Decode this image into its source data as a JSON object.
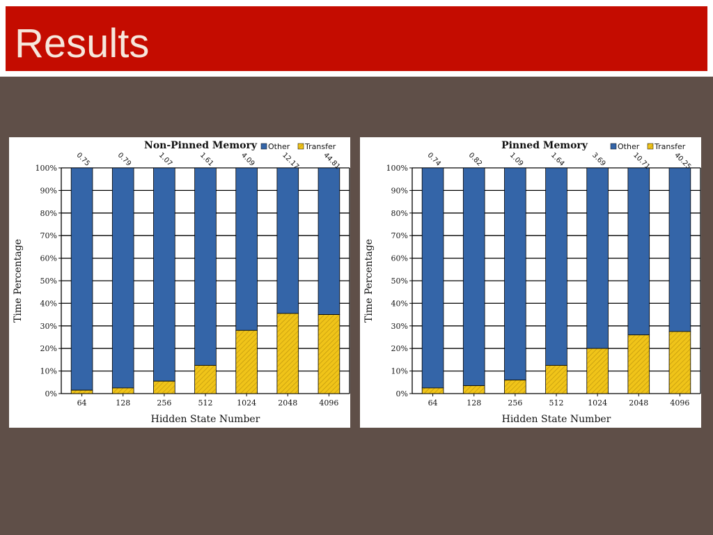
{
  "slide": {
    "title": "Results"
  },
  "colors": {
    "title_bar": "#c40c00",
    "background": "#5f4f48",
    "other": "#3465a8",
    "transfer": "#f0c419"
  },
  "chart_data": [
    {
      "type": "bar",
      "stacked": true,
      "title": "Non-Pinned Memory",
      "xlabel": "Hidden State Number",
      "ylabel": "Time Percentage",
      "categories": [
        "64",
        "128",
        "256",
        "512",
        "1024",
        "2048",
        "4096"
      ],
      "yticks": [
        "0%",
        "10%",
        "20%",
        "30%",
        "40%",
        "50%",
        "60%",
        "70%",
        "80%",
        "90%",
        "100%"
      ],
      "ylim": [
        0,
        100
      ],
      "legend": [
        "Other",
        "Transfer"
      ],
      "legend_position": "top-right",
      "series": [
        {
          "name": "Transfer",
          "values": [
            1.5,
            2.5,
            5.5,
            12.5,
            28,
            35.5,
            35
          ]
        },
        {
          "name": "Other",
          "values": [
            98.5,
            97.5,
            94.5,
            87.5,
            72,
            64.5,
            65
          ]
        }
      ],
      "data_labels": [
        "0.75",
        "0.79",
        "1.07",
        "1.61",
        "4.09",
        "12.17",
        "44.81"
      ]
    },
    {
      "type": "bar",
      "stacked": true,
      "title": "Pinned Memory",
      "xlabel": "Hidden State Number",
      "ylabel": "Time Percentage",
      "categories": [
        "64",
        "128",
        "256",
        "512",
        "1024",
        "2048",
        "4096"
      ],
      "yticks": [
        "0%",
        "10%",
        "20%",
        "30%",
        "40%",
        "50%",
        "60%",
        "70%",
        "80%",
        "90%",
        "100%"
      ],
      "ylim": [
        0,
        100
      ],
      "legend": [
        "Other",
        "Transfer"
      ],
      "legend_position": "top-right",
      "series": [
        {
          "name": "Transfer",
          "values": [
            2.5,
            3.5,
            6,
            12.5,
            20,
            26,
            27.5
          ]
        },
        {
          "name": "Other",
          "values": [
            97.5,
            96.5,
            94,
            87.5,
            80,
            74,
            72.5
          ]
        }
      ],
      "data_labels": [
        "0.74",
        "0.82",
        "1.09",
        "1.64",
        "3.69",
        "10.71",
        "40.25"
      ]
    }
  ]
}
